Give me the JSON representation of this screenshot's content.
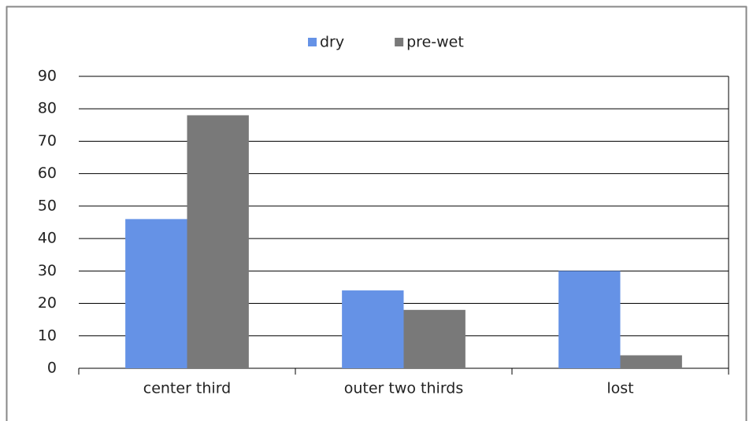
{
  "chart_data": {
    "type": "bar",
    "categories": [
      "center third",
      "outer two thirds",
      "lost"
    ],
    "series": [
      {
        "name": "dry",
        "color": "#6592e6",
        "values": [
          46,
          24,
          30
        ]
      },
      {
        "name": "pre-wet",
        "color": "#797979",
        "values": [
          78,
          18,
          4
        ]
      }
    ],
    "ylim": [
      0,
      90
    ],
    "yticks": [
      0,
      10,
      20,
      30,
      40,
      50,
      60,
      70,
      80,
      90
    ],
    "grid": true,
    "legend": "top"
  }
}
